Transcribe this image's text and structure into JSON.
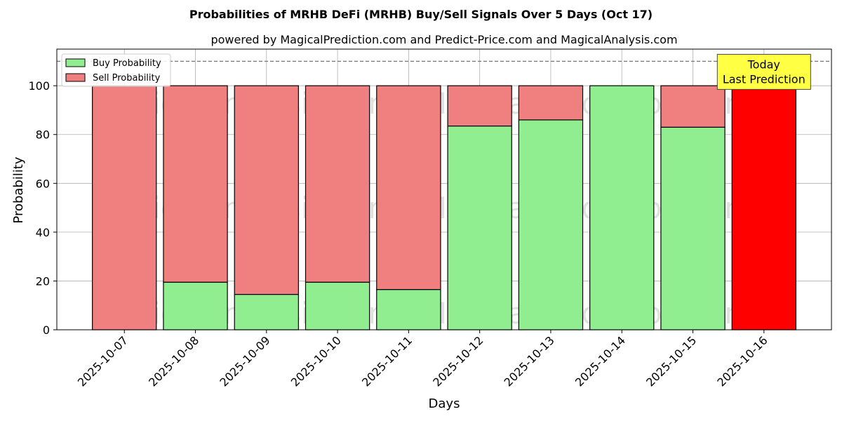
{
  "chart_data": {
    "type": "bar",
    "stacked": true,
    "title": "Probabilities of MRHB DeFi (MRHB) Buy/Sell Signals Over 5 Days (Oct 17)",
    "subtitle": "powered by MagicalPrediction.com and Predict-Price.com and MagicalAnalysis.com",
    "xlabel": "Days",
    "ylabel": "Probability",
    "ylim": [
      0,
      115
    ],
    "yticks": [
      0,
      20,
      40,
      60,
      80,
      100
    ],
    "grid": true,
    "legend_position": "top-left",
    "reference_line": {
      "y": 110,
      "style": "dashed"
    },
    "categories": [
      "2025-10-07",
      "2025-10-08",
      "2025-10-09",
      "2025-10-10",
      "2025-10-11",
      "2025-10-12",
      "2025-10-13",
      "2025-10-14",
      "2025-10-15",
      "2025-10-16"
    ],
    "series": [
      {
        "name": "Buy Probability",
        "color": "#90ee90",
        "values": [
          0,
          19.5,
          14.5,
          19.5,
          16.5,
          83.5,
          86,
          100,
          83,
          0
        ]
      },
      {
        "name": "Sell Probability",
        "color": "#f08080",
        "values": [
          100,
          80.5,
          85.5,
          80.5,
          83.5,
          16.5,
          14,
          0,
          17,
          100
        ]
      }
    ],
    "highlight": {
      "index": 9,
      "color": "#ff0000"
    },
    "annotation": {
      "lines": [
        "Today",
        "Last Prediction"
      ],
      "bg": "#ffff44",
      "x_category": "2025-10-16",
      "y": 110
    },
    "watermarks": [
      "MagicalAnalysis.com",
      "MagicalPrediction.com",
      "MagicalAnalysis.com",
      "MagicalPrediction.com",
      "MagicalAnalysis.com",
      "MagicalPrediction.com"
    ]
  }
}
